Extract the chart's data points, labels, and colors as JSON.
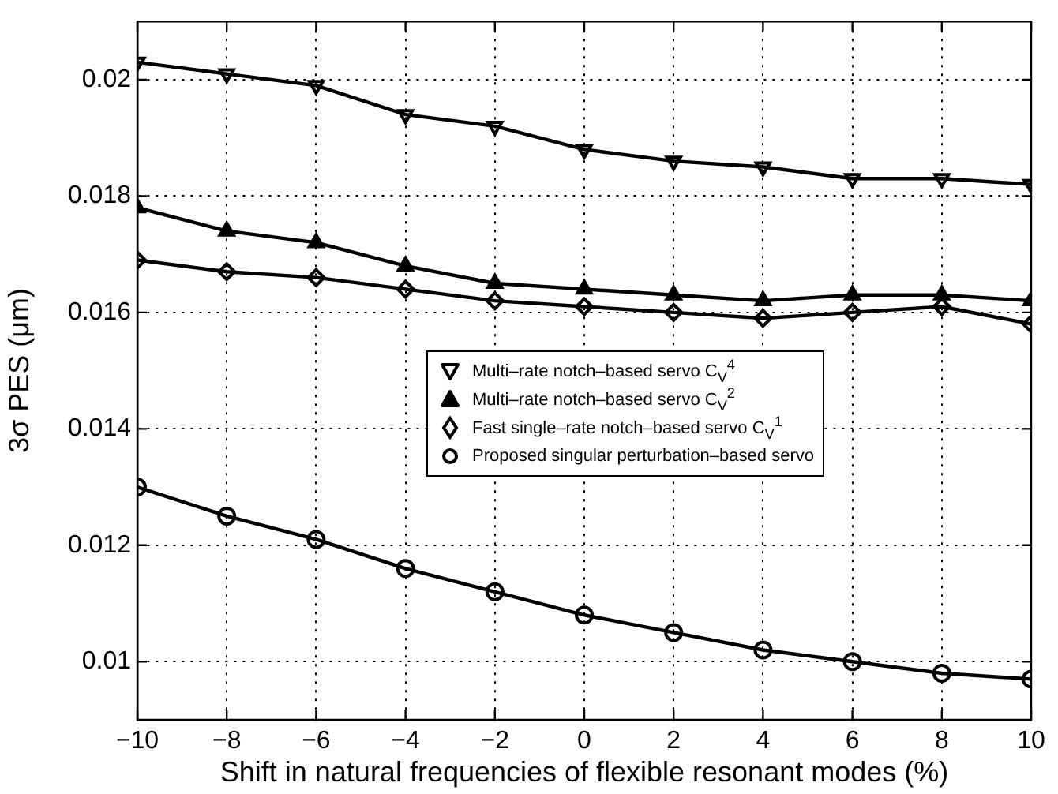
{
  "chart_data": {
    "type": "line",
    "xlabel": "Shift in natural frequencies of flexible resonant modes (%)",
    "ylabel": "3σ PES (μm)",
    "x": [
      -10,
      -8,
      -6,
      -4,
      -2,
      0,
      2,
      4,
      6,
      8,
      10
    ],
    "series": [
      {
        "name": "Multi–rate notch–based servo C$_{V}$$^{4}$",
        "color": "#000000",
        "marker": "triangle_down",
        "values": [
          0.0203,
          0.0201,
          0.0199,
          0.0194,
          0.0192,
          0.0188,
          0.0186,
          0.0185,
          0.0183,
          0.0183,
          0.0182
        ]
      },
      {
        "name": "Multi–rate notch–based servo C$_{V}$$^{2}$",
        "color": "#000000",
        "marker": "triangle",
        "values": [
          0.0178,
          0.0174,
          0.0172,
          0.0168,
          0.0165,
          0.0164,
          0.0163,
          0.0162,
          0.0163,
          0.0163,
          0.0162
        ]
      },
      {
        "name": "Fast single–rate notch–based servo C$_{V}$$^{1}$",
        "color": "#000000",
        "marker": "diamond",
        "values": [
          0.0169,
          0.0167,
          0.0166,
          0.0164,
          0.0162,
          0.0161,
          0.016,
          0.0159,
          0.016,
          0.0161,
          0.0158
        ]
      },
      {
        "name": "Proposed singular perturbation–based servo",
        "color": "#000000",
        "marker": "circle",
        "values": [
          0.013,
          0.0125,
          0.0121,
          0.0116,
          0.0112,
          0.0108,
          0.0105,
          0.0102,
          0.01,
          0.0098,
          0.0097
        ]
      }
    ],
    "xlim": [
      -10,
      10
    ],
    "xticks": [
      {
        "value": -10,
        "label": "−10"
      },
      {
        "value": -8,
        "label": "−8"
      },
      {
        "value": -6,
        "label": "−6"
      },
      {
        "value": -4,
        "label": "−4"
      },
      {
        "value": -2,
        "label": "−2"
      },
      0,
      2,
      4,
      6,
      8,
      10
    ],
    "ylim": [
      0.009,
      0.021
    ],
    "yticks": [
      0.01,
      0.012,
      0.014,
      0.016,
      0.018,
      0.02
    ],
    "grid": true,
    "legend": "center",
    "line_style": "solid"
  }
}
